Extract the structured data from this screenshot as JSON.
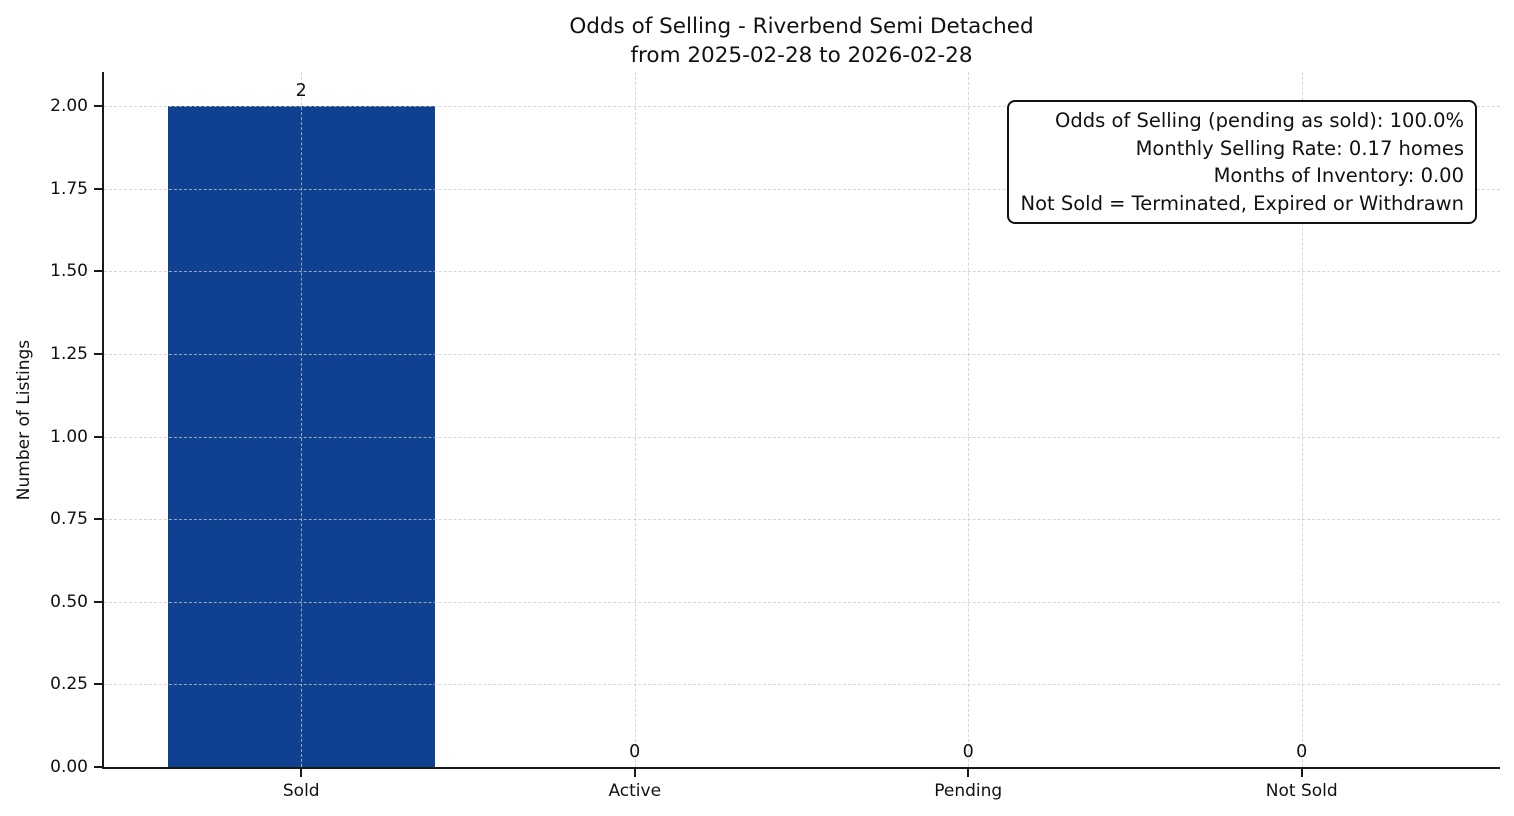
{
  "chart_data": {
    "type": "bar",
    "title": "Odds of Selling - Riverbend Semi Detached",
    "subtitle": "from 2025-02-28 to 2026-02-28",
    "categories": [
      "Sold",
      "Active",
      "Pending",
      "Not Sold"
    ],
    "values": [
      2,
      0,
      0,
      0
    ],
    "bar_value_labels": [
      "2",
      "0",
      "0",
      "0"
    ],
    "xlabel": "",
    "ylabel": "Number of Listings",
    "ylim": [
      0,
      2.1
    ],
    "yticks": [
      0,
      0.25,
      0.5,
      0.75,
      1.0,
      1.25,
      1.5,
      1.75,
      2.0
    ],
    "ytick_labels": [
      "0.00",
      "0.25",
      "0.50",
      "0.75",
      "1.00",
      "1.25",
      "1.50",
      "1.75",
      "2.00"
    ],
    "grid": {
      "visible": true,
      "style": "dashed",
      "axes": "both",
      "above_bars": true
    },
    "legend": "none",
    "bar_color": "#104090",
    "grid_color": "#c6c9ce",
    "axis_color": "#1a1a1a",
    "annotation": {
      "lines": [
        "Odds of Selling (pending as sold): 100.0%",
        "Monthly Selling Rate: 0.17 homes",
        "Months of Inventory: 0.00",
        "Not Sold = Terminated, Expired or Withdrawn"
      ]
    }
  }
}
